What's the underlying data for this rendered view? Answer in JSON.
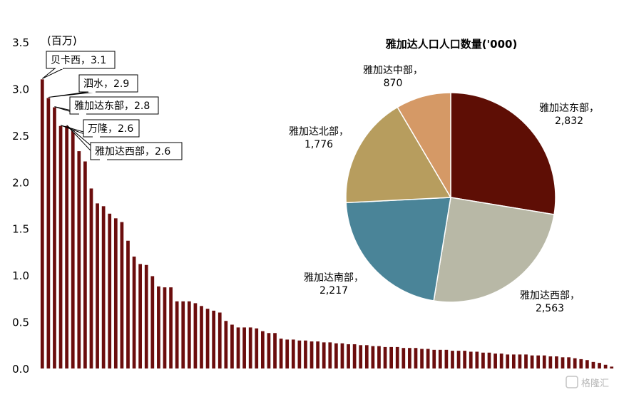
{
  "chart_data": [
    {
      "type": "bar",
      "unit_label": "(百万)",
      "ylim": [
        0,
        3.5
      ],
      "yticks": [
        "0.0",
        "0.5",
        "1.0",
        "1.5",
        "2.0",
        "2.5",
        "3.0",
        "3.5"
      ],
      "color": "#6b0d0d",
      "values": [
        3.1,
        2.9,
        2.8,
        2.6,
        2.6,
        2.55,
        2.33,
        2.22,
        1.93,
        1.77,
        1.74,
        1.66,
        1.61,
        1.57,
        1.37,
        1.2,
        1.12,
        1.11,
        0.99,
        0.88,
        0.87,
        0.87,
        0.72,
        0.72,
        0.72,
        0.7,
        0.67,
        0.64,
        0.62,
        0.6,
        0.51,
        0.47,
        0.44,
        0.44,
        0.44,
        0.43,
        0.4,
        0.38,
        0.38,
        0.32,
        0.31,
        0.31,
        0.3,
        0.3,
        0.29,
        0.29,
        0.28,
        0.28,
        0.27,
        0.27,
        0.26,
        0.26,
        0.25,
        0.25,
        0.24,
        0.24,
        0.23,
        0.23,
        0.23,
        0.22,
        0.22,
        0.22,
        0.21,
        0.21,
        0.2,
        0.2,
        0.2,
        0.19,
        0.19,
        0.19,
        0.18,
        0.18,
        0.17,
        0.17,
        0.16,
        0.16,
        0.15,
        0.15,
        0.15,
        0.15,
        0.14,
        0.14,
        0.14,
        0.13,
        0.13,
        0.12,
        0.12,
        0.11,
        0.1,
        0.09,
        0.07,
        0.06,
        0.04,
        0.02
      ],
      "annotations": [
        {
          "index": 0,
          "text": "贝卡西，3.1"
        },
        {
          "index": 1,
          "text": "泗水，2.9"
        },
        {
          "index": 2,
          "text": "雅加达东部，2.8"
        },
        {
          "index": 3,
          "text": "万隆，2.6"
        },
        {
          "index": 4,
          "text": "雅加达西部，2.6"
        }
      ]
    },
    {
      "type": "pie",
      "title": "雅加达人口人口数量('000)",
      "slices": [
        {
          "label": "雅加达东部，",
          "value_text": "2,832",
          "value": 2832,
          "color": "#5e0e05"
        },
        {
          "label": "雅加达西部，",
          "value_text": "2,563",
          "value": 2563,
          "color": "#b8b8a6"
        },
        {
          "label": "雅加达南部，",
          "value_text": "2,217",
          "value": 2217,
          "color": "#4a8498"
        },
        {
          "label": "雅加达北部，",
          "value_text": "1,776",
          "value": 1776,
          "color": "#b79d5e"
        },
        {
          "label": "雅加达中部，",
          "value_text": "870",
          "value": 870,
          "color": "#d59966"
        }
      ]
    }
  ],
  "watermark": "格隆汇"
}
